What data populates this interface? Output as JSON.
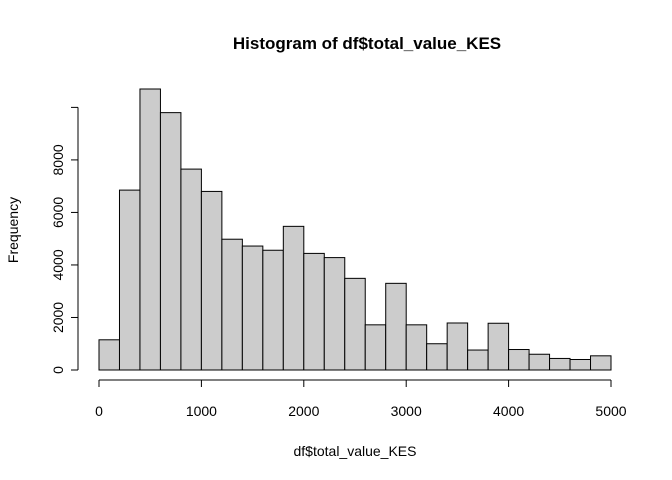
{
  "chart_data": {
    "type": "bar",
    "title": "Histogram of df$total_value_KES",
    "xlabel": "df$total_value_KES",
    "ylabel": "Frequency",
    "bin_width": 200,
    "bins_start": 0,
    "values": [
      1150,
      6850,
      10700,
      9800,
      7650,
      6800,
      4980,
      4720,
      4560,
      5470,
      4440,
      4280,
      3490,
      1720,
      3300,
      1720,
      1000,
      1790,
      760,
      1780,
      780,
      600,
      440,
      400,
      540
    ],
    "xlim": [
      0,
      5000
    ],
    "ylim": [
      0,
      10700
    ],
    "x_ticks": [
      0,
      1000,
      2000,
      3000,
      4000,
      5000
    ],
    "y_ticks": [
      0,
      2000,
      4000,
      6000,
      8000
    ],
    "colors": {
      "bar_fill": "#cccccc",
      "bar_stroke": "#000000"
    }
  }
}
